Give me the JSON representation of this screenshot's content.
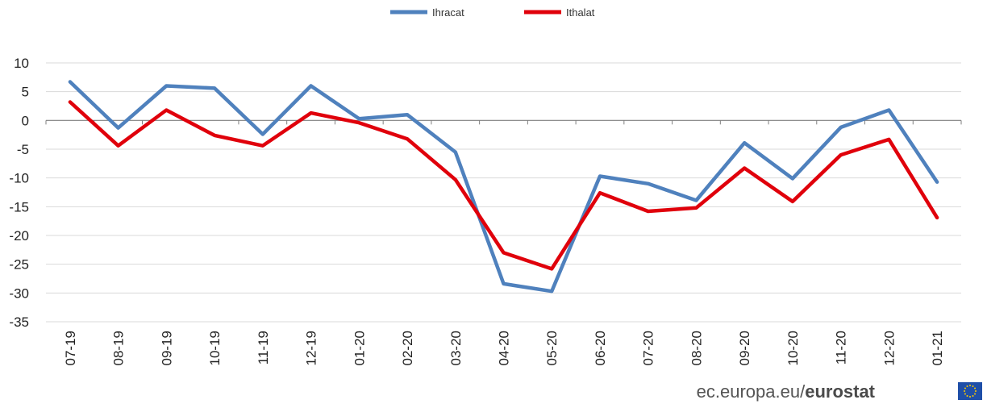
{
  "chart_data": {
    "type": "line",
    "categories": [
      "07-19",
      "08-19",
      "09-19",
      "10-19",
      "11-19",
      "12-19",
      "01-20",
      "02-20",
      "03-20",
      "04-20",
      "05-20",
      "06-20",
      "07-20",
      "08-20",
      "09-20",
      "10-20",
      "11-20",
      "12-20",
      "01-21"
    ],
    "series": [
      {
        "name": "Ihracat",
        "color": "#4f81bd",
        "values": [
          6.7,
          -1.3,
          6.0,
          5.6,
          -2.4,
          6.0,
          0.3,
          1.0,
          -5.5,
          -28.4,
          -29.7,
          -9.7,
          -11.0,
          -13.9,
          -3.9,
          -10.1,
          -1.2,
          1.8,
          -10.7
        ]
      },
      {
        "name": "Ithalat",
        "color": "#e0000b",
        "values": [
          3.2,
          -4.4,
          1.8,
          -2.6,
          -4.4,
          1.3,
          -0.4,
          -3.2,
          -10.3,
          -23.0,
          -25.8,
          -12.6,
          -15.8,
          -15.2,
          -8.3,
          -14.1,
          -6.0,
          -3.3,
          -16.9
        ]
      }
    ],
    "title": "",
    "xlabel": "",
    "ylabel": "",
    "ylim": [
      -35,
      10
    ],
    "yticks": [
      10,
      5,
      0,
      -5,
      -10,
      -15,
      -20,
      -25,
      -30,
      -35
    ],
    "grid": "horizontal",
    "legend_position": "top-center"
  },
  "source": {
    "text": "ec.europa.eu/",
    "brand": "eurostat",
    "flag_color": "#1f4fa8",
    "star_color": "#ffcc00"
  }
}
